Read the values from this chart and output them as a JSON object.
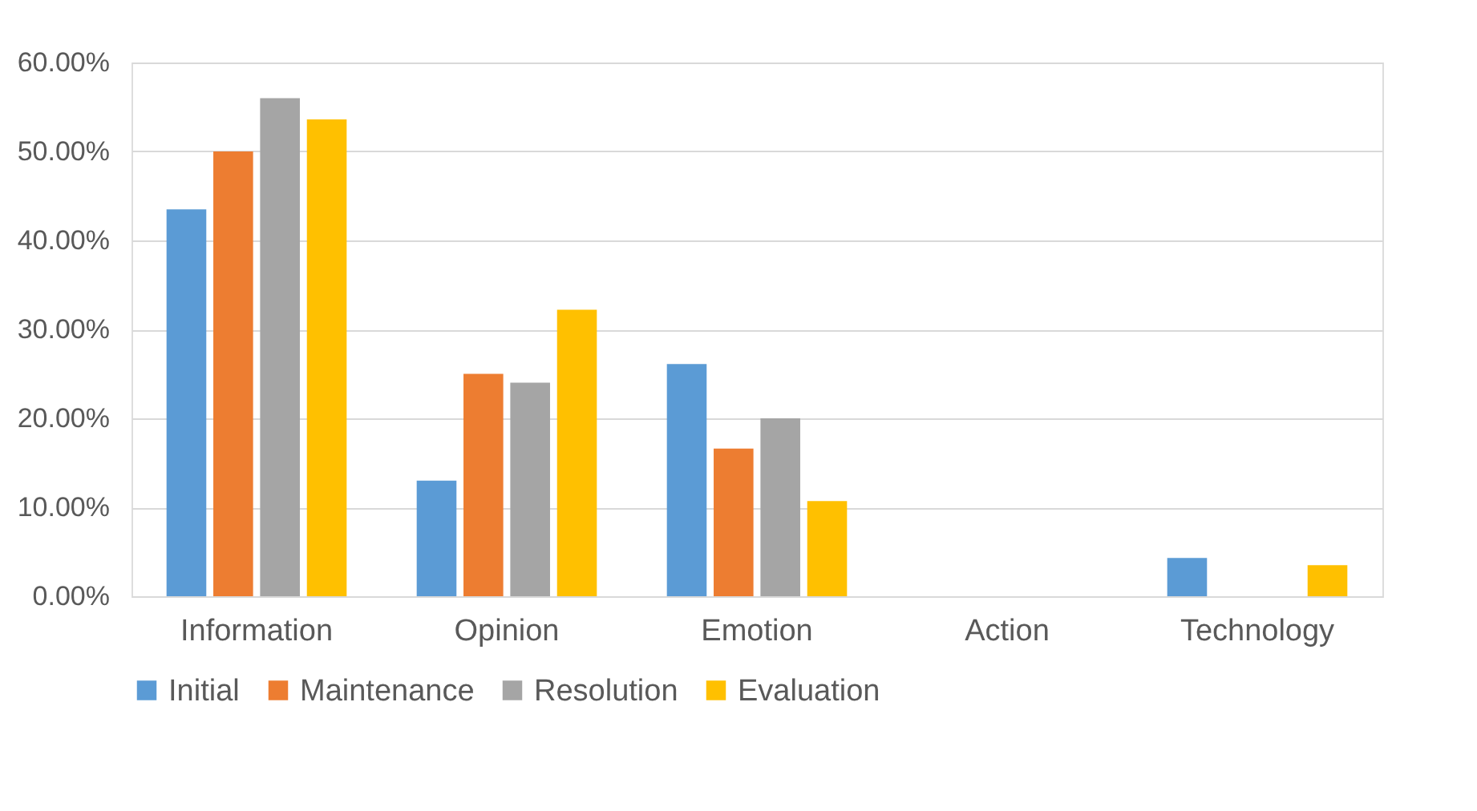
{
  "chart_data": {
    "type": "bar",
    "categories": [
      "Information",
      "Opinion",
      "Emotion",
      "Action",
      "Technology"
    ],
    "series": [
      {
        "name": "Initial",
        "color": "#5b9bd5",
        "values": [
          43.5,
          13.0,
          26.1,
          0,
          4.3
        ]
      },
      {
        "name": "Maintenance",
        "color": "#ed7d31",
        "values": [
          50.0,
          25.0,
          16.6,
          0,
          0
        ]
      },
      {
        "name": "Resolution",
        "color": "#a5a5a5",
        "values": [
          56.0,
          24.0,
          20.0,
          0,
          0
        ]
      },
      {
        "name": "Evaluation",
        "color": "#ffc000",
        "values": [
          53.6,
          32.2,
          10.7,
          0,
          3.5
        ]
      }
    ],
    "ylim": [
      0,
      60
    ],
    "yticks": [
      {
        "value": 0,
        "label": "0.00%"
      },
      {
        "value": 10,
        "label": "10.00%"
      },
      {
        "value": 20,
        "label": "20.00%"
      },
      {
        "value": 30,
        "label": "30.00%"
      },
      {
        "value": 40,
        "label": "40.00%"
      },
      {
        "value": 50,
        "label": "50.00%"
      },
      {
        "value": 60,
        "label": "60.00%"
      }
    ],
    "grid": "y",
    "legend": "bottom"
  }
}
